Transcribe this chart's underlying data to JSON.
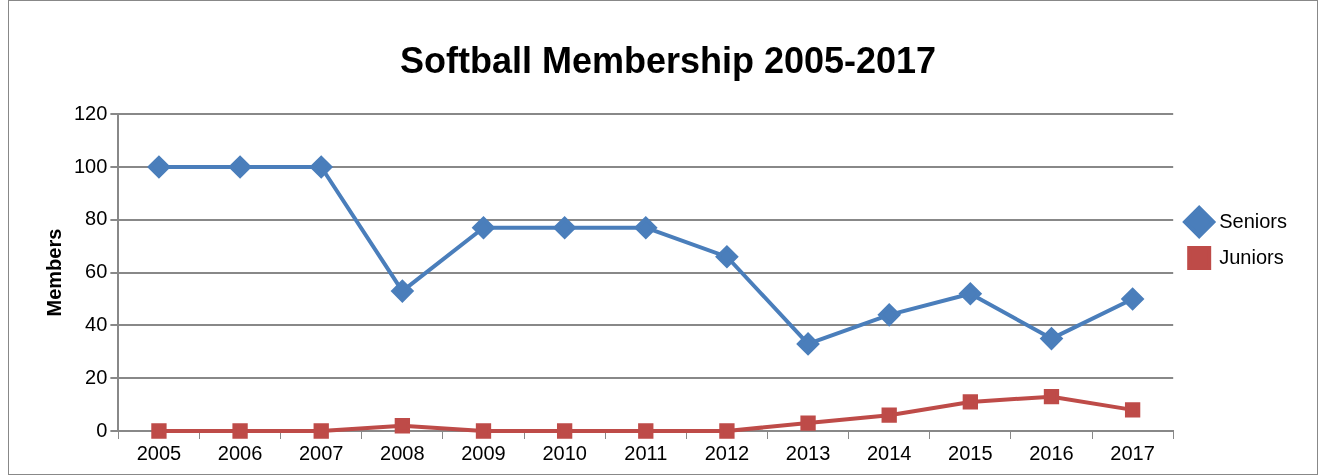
{
  "chart_data": {
    "type": "line",
    "title": "Softball Membership 2005-2017",
    "ylabel": "Members",
    "categories": [
      "2005",
      "2006",
      "2007",
      "2008",
      "2009",
      "2010",
      "2011",
      "2012",
      "2013",
      "2014",
      "2015",
      "2016",
      "2017"
    ],
    "series": [
      {
        "name": "Seniors",
        "color": "#4a7ebb",
        "marker": "diamond",
        "values": [
          100,
          100,
          100,
          53,
          77,
          77,
          77,
          66,
          33,
          44,
          52,
          35,
          50
        ]
      },
      {
        "name": "Juniors",
        "color": "#be4b48",
        "marker": "square",
        "values": [
          0,
          0,
          0,
          2,
          0,
          0,
          0,
          0,
          3,
          6,
          11,
          13,
          8
        ]
      }
    ],
    "ylim": [
      0,
      120
    ],
    "yticks": [
      0,
      20,
      40,
      60,
      80,
      100,
      120
    ],
    "grid": "y",
    "legend": "right",
    "line_style": "solid"
  }
}
